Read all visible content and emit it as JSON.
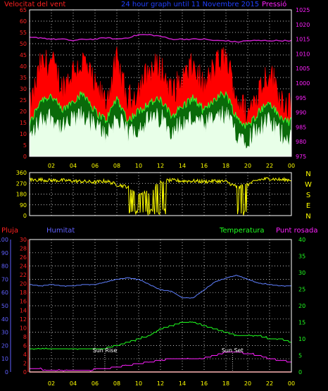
{
  "header": {
    "left_title": "Velocitat del vent",
    "center_title": "24 hour graph until 11 Novembre 2015",
    "right_title": "Pressió"
  },
  "colors": {
    "background": "#000000",
    "axis_red": "#ff2020",
    "axis_magenta": "#ff20ff",
    "axis_yellow": "#ffff00",
    "axis_blue": "#6060ff",
    "axis_green": "#20ff20",
    "grid": "#ffffff",
    "gust": "#ff0000",
    "avg_wind": "#20c020",
    "wind_low": "#e8ffe8",
    "pressure": "#d020d0",
    "direction": "#ffff00",
    "humidity": "#6080ff",
    "temperature": "#20ff20",
    "dewpoint": "#ff20ff",
    "rain": "#ff2020"
  },
  "chart_data": [
    {
      "type": "area",
      "name": "wind-and-pressure",
      "x_ticks": [
        "02",
        "04",
        "06",
        "08",
        "10",
        "12",
        "14",
        "16",
        "18",
        "20",
        "22",
        "00"
      ],
      "y_left_ticks": [
        "0",
        "5",
        "10",
        "15",
        "20",
        "25",
        "30",
        "35",
        "40",
        "45",
        "50",
        "55",
        "60",
        "65"
      ],
      "y_right_ticks": [
        "975",
        "980",
        "985",
        "990",
        "995",
        "1000",
        "1005",
        "1010",
        "1015",
        "1020",
        "1025"
      ],
      "ylim_left": [
        0,
        65
      ],
      "ylim_right": [
        975,
        1025
      ],
      "hours": [
        0,
        1,
        2,
        3,
        4,
        5,
        6,
        7,
        8,
        9,
        10,
        11,
        12,
        13,
        14,
        15,
        16,
        17,
        18,
        19,
        20,
        21,
        22,
        23,
        24
      ],
      "series": [
        {
          "name": "gust",
          "values": [
            20,
            40,
            42,
            30,
            38,
            42,
            30,
            24,
            42,
            24,
            30,
            38,
            40,
            28,
            34,
            40,
            30,
            40,
            44,
            26,
            18,
            30,
            38,
            26,
            22
          ]
        },
        {
          "name": "average",
          "values": [
            14,
            25,
            27,
            20,
            25,
            28,
            20,
            16,
            26,
            16,
            20,
            24,
            25,
            18,
            22,
            26,
            20,
            26,
            28,
            17,
            13,
            20,
            24,
            17,
            15
          ]
        },
        {
          "name": "minimum",
          "values": [
            8,
            16,
            18,
            12,
            16,
            18,
            13,
            10,
            17,
            10,
            13,
            16,
            17,
            12,
            14,
            17,
            13,
            17,
            18,
            10,
            8,
            13,
            15,
            10,
            9
          ]
        },
        {
          "name": "pressure",
          "values": [
            1015.5,
            1015.5,
            1015,
            1015,
            1014.5,
            1015,
            1015,
            1015.5,
            1015,
            1015.5,
            1016.5,
            1016.5,
            1016,
            1015,
            1015,
            1015,
            1015,
            1014.5,
            1014.5,
            1014,
            1014.5,
            1014.5,
            1014.5,
            1014.5,
            1014.5
          ]
        }
      ]
    },
    {
      "type": "scatter",
      "name": "wind-direction",
      "x_ticks": [
        "02",
        "04",
        "06",
        "08",
        "10",
        "12",
        "14",
        "16",
        "18",
        "20",
        "22",
        "00"
      ],
      "y_ticks": [
        "0",
        "90",
        "180",
        "270",
        "360"
      ],
      "right_labels": [
        "N",
        "W",
        "S",
        "E",
        "N"
      ],
      "ylim": [
        0,
        360
      ],
      "hours": [
        0,
        1,
        2,
        3,
        4,
        5,
        6,
        7,
        8,
        9,
        10,
        11,
        12,
        13,
        14,
        15,
        16,
        17,
        18,
        19,
        20,
        21,
        22,
        23,
        24
      ],
      "values": [
        300,
        300,
        295,
        295,
        290,
        285,
        280,
        290,
        260,
        240,
        180,
        200,
        290,
        295,
        290,
        290,
        285,
        290,
        285,
        240,
        260,
        300,
        310,
        300,
        300
      ]
    },
    {
      "type": "line",
      "name": "humidity-temperature",
      "left_labels": {
        "rain": "Pluja",
        "humidity": "Humitat"
      },
      "right_labels": {
        "temperature": "Temperatura",
        "dewpoint": "Punt rosada"
      },
      "x_ticks": [
        "02",
        "04",
        "06",
        "08",
        "10",
        "12",
        "14",
        "16",
        "18",
        "20",
        "22",
        "00"
      ],
      "y_humidity_ticks": [
        "0",
        "10",
        "20",
        "30",
        "40",
        "50",
        "60",
        "70",
        "80",
        "90",
        "100"
      ],
      "y_rain_ticks": [
        "0",
        "2",
        "4",
        "6",
        "8",
        "10",
        "12",
        "14",
        "16",
        "18",
        "20",
        "22",
        "24",
        "26",
        "28",
        "30"
      ],
      "y_temp_ticks": [
        "0",
        "5",
        "10",
        "15",
        "20",
        "25",
        "30",
        "35",
        "40"
      ],
      "annotations": [
        {
          "label": "Sun Rise",
          "hour": 6.9
        },
        {
          "label": "Sun Set",
          "hour": 18.6
        }
      ],
      "hours": [
        0,
        1,
        2,
        3,
        4,
        5,
        6,
        7,
        8,
        9,
        10,
        11,
        12,
        13,
        14,
        15,
        16,
        17,
        18,
        19,
        20,
        21,
        22,
        23,
        24
      ],
      "series": [
        {
          "name": "humidity",
          "values": [
            66,
            65,
            66,
            65,
            65,
            66,
            66,
            68,
            70,
            71,
            70,
            66,
            62,
            61,
            56,
            56,
            62,
            68,
            71,
            73,
            70,
            67,
            66,
            65,
            65
          ]
        },
        {
          "name": "temperature",
          "values": [
            7,
            7,
            7,
            7,
            7,
            7,
            7,
            7.2,
            8,
            9,
            10,
            11,
            13,
            14,
            15,
            15,
            14,
            13,
            12,
            11,
            11,
            11,
            10,
            10,
            9
          ]
        },
        {
          "name": "dewpoint",
          "values": [
            1,
            0.8,
            0.5,
            0.5,
            0.5,
            0.5,
            0.8,
            1,
            1.5,
            2,
            2.5,
            3,
            3.5,
            4,
            4,
            4,
            4.2,
            5,
            6,
            6,
            5.5,
            5,
            4,
            3.5,
            3
          ]
        },
        {
          "name": "rain",
          "values": [
            0,
            0,
            0,
            0,
            0,
            0,
            0,
            0,
            0,
            0,
            0,
            0,
            0,
            0,
            0,
            0,
            0,
            0,
            0,
            0,
            0,
            0,
            0,
            0,
            0
          ]
        }
      ]
    }
  ]
}
